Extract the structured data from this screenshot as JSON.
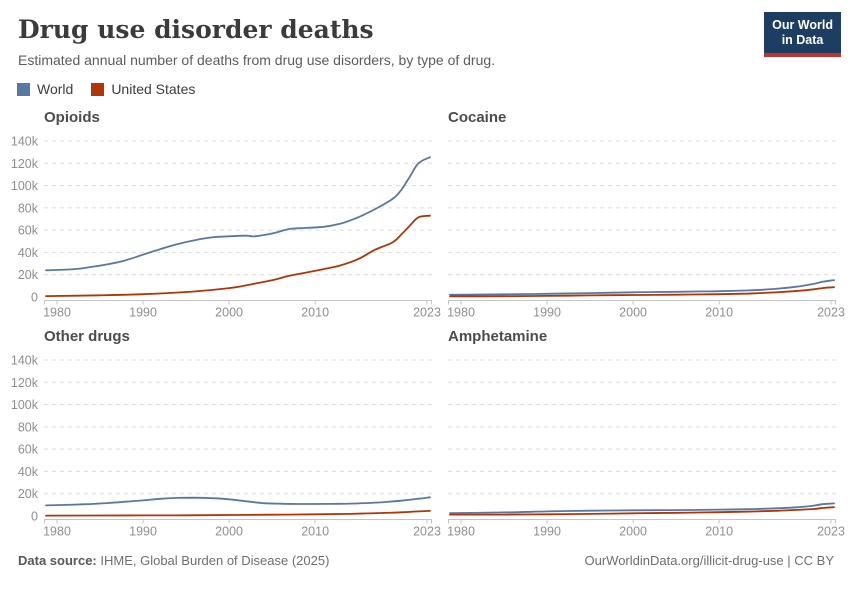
{
  "header": {
    "title": "Drug use disorder deaths",
    "subtitle": "Estimated annual number of deaths from drug use disorders, by type of drug.",
    "logo": {
      "line1": "Our World",
      "line2": "in Data"
    }
  },
  "legend": {
    "items": [
      {
        "label": "World",
        "color": "#5878a4"
      },
      {
        "label": "United States",
        "color": "#b13507"
      }
    ]
  },
  "footer": {
    "source_label": "Data source:",
    "source": "IHME, Global Burden of Disease (2025)",
    "url": "OurWorldinData.org/illicit-drug-use",
    "separator": " | ",
    "license": "CC BY"
  },
  "colors": {
    "world_line": "#5878a4",
    "us_line": "#b13507",
    "grid": "#dcdcdc",
    "axis": "#c4c4c4",
    "axis_label": "#8f8f8f",
    "facet_title": "#4c4c4c",
    "logo_bg": "#1d3d63",
    "logo_accent": "#c5312e"
  },
  "chart_data": {
    "type": "line",
    "unit": "deaths",
    "xlabel": "",
    "ylabel": "",
    "xlim": [
      1980,
      2023
    ],
    "ylim": [
      0,
      140000
    ],
    "x_ticks": [
      1980,
      1990,
      2000,
      2010,
      2023
    ],
    "y_ticks": [
      0,
      20000,
      40000,
      60000,
      80000,
      100000,
      120000,
      140000
    ],
    "grid": true,
    "legend_position": "top-left",
    "panels": [
      {
        "title": "Opioids",
        "series": [
          {
            "name": "World",
            "color": "#5878a4",
            "points": [
              [
                1980,
                24000
              ],
              [
                1982,
                25000
              ],
              [
                1984,
                27000
              ],
              [
                1986,
                29500
              ],
              [
                1988,
                33000
              ],
              [
                1990,
                38000
              ],
              [
                1992,
                43000
              ],
              [
                1994,
                47500
              ],
              [
                1996,
                51000
              ],
              [
                1998,
                53500
              ],
              [
                2000,
                54500
              ],
              [
                2002,
                55000
              ],
              [
                2003,
                54500
              ],
              [
                2005,
                57000
              ],
              [
                2007,
                61000
              ],
              [
                2009,
                62000
              ],
              [
                2011,
                63000
              ],
              [
                2013,
                66000
              ],
              [
                2015,
                71500
              ],
              [
                2017,
                79000
              ],
              [
                2019,
                88000
              ],
              [
                2020,
                96000
              ],
              [
                2021,
                108000
              ],
              [
                2022,
                120000
              ],
              [
                2023,
                125500
              ]
            ]
          },
          {
            "name": "United States",
            "color": "#b13507",
            "points": [
              [
                1980,
                800
              ],
              [
                1985,
                1500
              ],
              [
                1990,
                2500
              ],
              [
                1995,
                4500
              ],
              [
                2000,
                8000
              ],
              [
                2003,
                12000
              ],
              [
                2005,
                15000
              ],
              [
                2007,
                19000
              ],
              [
                2009,
                22000
              ],
              [
                2011,
                25000
              ],
              [
                2013,
                28500
              ],
              [
                2015,
                34000
              ],
              [
                2017,
                42500
              ],
              [
                2019,
                49000
              ],
              [
                2020,
                56000
              ],
              [
                2021,
                64000
              ],
              [
                2022,
                71500
              ],
              [
                2023,
                73000
              ]
            ]
          }
        ]
      },
      {
        "title": "Cocaine",
        "series": [
          {
            "name": "World",
            "color": "#5878a4",
            "points": [
              [
                1980,
                2000
              ],
              [
                1985,
                2400
              ],
              [
                1990,
                2900
              ],
              [
                1995,
                3500
              ],
              [
                2000,
                4200
              ],
              [
                2005,
                4700
              ],
              [
                2008,
                5000
              ],
              [
                2010,
                5200
              ],
              [
                2013,
                5800
              ],
              [
                2015,
                6500
              ],
              [
                2017,
                7600
              ],
              [
                2019,
                9200
              ],
              [
                2021,
                11800
              ],
              [
                2022,
                13600
              ],
              [
                2023,
                15200
              ]
            ]
          },
          {
            "name": "United States",
            "color": "#b13507",
            "points": [
              [
                1980,
                500
              ],
              [
                1985,
                700
              ],
              [
                1990,
                1000
              ],
              [
                1995,
                1400
              ],
              [
                2000,
                1800
              ],
              [
                2005,
                2100
              ],
              [
                2010,
                2500
              ],
              [
                2013,
                3000
              ],
              [
                2015,
                3600
              ],
              [
                2017,
                4400
              ],
              [
                2019,
                5400
              ],
              [
                2021,
                6900
              ],
              [
                2022,
                8000
              ],
              [
                2023,
                8800
              ]
            ]
          }
        ]
      },
      {
        "title": "Other drugs",
        "series": [
          {
            "name": "World",
            "color": "#5878a4",
            "points": [
              [
                1980,
                9500
              ],
              [
                1982,
                10200
              ],
              [
                1984,
                10800
              ],
              [
                1986,
                11700
              ],
              [
                1988,
                12800
              ],
              [
                1990,
                14000
              ],
              [
                1992,
                15400
              ],
              [
                1994,
                16200
              ],
              [
                1996,
                16400
              ],
              [
                1998,
                16000
              ],
              [
                2000,
                15000
              ],
              [
                2002,
                13200
              ],
              [
                2004,
                11500
              ],
              [
                2006,
                11000
              ],
              [
                2008,
                10800
              ],
              [
                2010,
                10800
              ],
              [
                2012,
                10900
              ],
              [
                2014,
                11100
              ],
              [
                2016,
                11600
              ],
              [
                2018,
                12500
              ],
              [
                2020,
                13700
              ],
              [
                2022,
                15500
              ],
              [
                2023,
                16800
              ]
            ]
          },
          {
            "name": "United States",
            "color": "#b13507",
            "points": [
              [
                1980,
                400
              ],
              [
                1990,
                500
              ],
              [
                1995,
                600
              ],
              [
                2000,
                900
              ],
              [
                2005,
                1200
              ],
              [
                2010,
                1500
              ],
              [
                2014,
                1900
              ],
              [
                2016,
                2300
              ],
              [
                2018,
                2800
              ],
              [
                2020,
                3300
              ],
              [
                2022,
                4100
              ],
              [
                2023,
                4600
              ]
            ]
          }
        ]
      },
      {
        "title": "Amphetamine",
        "series": [
          {
            "name": "World",
            "color": "#5878a4",
            "points": [
              [
                1980,
                2600
              ],
              [
                1985,
                3200
              ],
              [
                1990,
                4100
              ],
              [
                1995,
                4800
              ],
              [
                2000,
                5100
              ],
              [
                2005,
                5300
              ],
              [
                2010,
                5700
              ],
              [
                2013,
                6100
              ],
              [
                2015,
                6500
              ],
              [
                2017,
                7000
              ],
              [
                2019,
                7800
              ],
              [
                2021,
                9300
              ],
              [
                2022,
                10600
              ],
              [
                2023,
                11300
              ]
            ]
          },
          {
            "name": "United States",
            "color": "#b13507",
            "points": [
              [
                1980,
                1300
              ],
              [
                1985,
                1300
              ],
              [
                1990,
                1500
              ],
              [
                1995,
                1900
              ],
              [
                2000,
                2400
              ],
              [
                2005,
                2900
              ],
              [
                2010,
                3400
              ],
              [
                2013,
                3900
              ],
              [
                2015,
                4300
              ],
              [
                2017,
                4800
              ],
              [
                2019,
                5500
              ],
              [
                2021,
                6300
              ],
              [
                2022,
                7200
              ],
              [
                2023,
                7900
              ]
            ]
          }
        ]
      }
    ]
  }
}
